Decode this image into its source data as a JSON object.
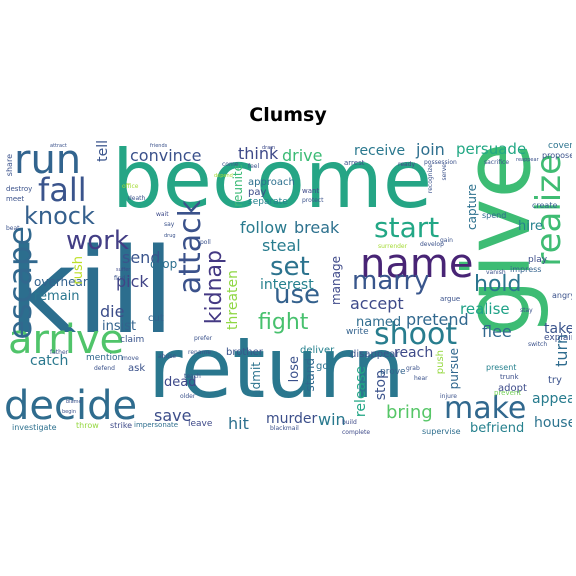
{
  "title": "Clumsy",
  "words": [
    {
      "text": "kill",
      "color": "#2c6e8e"
    },
    {
      "text": "become",
      "color": "#25a585"
    },
    {
      "text": "return",
      "color": "#2a778e"
    },
    {
      "text": "give",
      "color": "#3dbc74"
    },
    {
      "text": "realize",
      "color": "#3fbc73"
    },
    {
      "text": "name",
      "color": "#482475"
    },
    {
      "text": "arrive",
      "color": "#50c46a"
    },
    {
      "text": "decide",
      "color": "#2f6c8e"
    },
    {
      "text": "escape",
      "color": "#31688e"
    },
    {
      "text": "run",
      "color": "#32648e"
    },
    {
      "text": "fall",
      "color": "#3a548c"
    },
    {
      "text": "knock",
      "color": "#35608d"
    },
    {
      "text": "work",
      "color": "#433e85"
    },
    {
      "text": "attack",
      "color": "#3b528b"
    },
    {
      "text": "make",
      "color": "#31688e"
    },
    {
      "text": "shoot",
      "color": "#287d8e"
    },
    {
      "text": "start",
      "color": "#22a785"
    },
    {
      "text": "marry",
      "color": "#39568c"
    },
    {
      "text": "set",
      "color": "#2c738e"
    },
    {
      "text": "use",
      "color": "#34618d"
    },
    {
      "text": "hold",
      "color": "#2b748e"
    },
    {
      "text": "kidnap",
      "color": "#443983"
    },
    {
      "text": "fight",
      "color": "#48c16e"
    },
    {
      "text": "convince",
      "color": "#3b518b"
    },
    {
      "text": "think",
      "color": "#3e4989"
    },
    {
      "text": "drive",
      "color": "#3bbb75"
    },
    {
      "text": "receive",
      "color": "#2a788e"
    },
    {
      "text": "join",
      "color": "#2e6f8e"
    },
    {
      "text": "persuade",
      "color": "#22a884"
    },
    {
      "text": "follow",
      "color": "#297a8e"
    },
    {
      "text": "break",
      "color": "#2d718e"
    },
    {
      "text": "tell",
      "color": "#3a548c"
    },
    {
      "text": "send",
      "color": "#3a548c"
    },
    {
      "text": "steal",
      "color": "#287c8e"
    },
    {
      "text": "pick",
      "color": "#414487"
    },
    {
      "text": "die",
      "color": "#3d4e8a"
    },
    {
      "text": "accept",
      "color": "#3e4a89"
    },
    {
      "text": "pretend",
      "color": "#31688e"
    },
    {
      "text": "flee",
      "color": "#31688e"
    },
    {
      "text": "realise",
      "color": "#1fa287"
    },
    {
      "text": "take",
      "color": "#3a548c"
    },
    {
      "text": "interest",
      "color": "#26818e"
    },
    {
      "text": "named",
      "color": "#2f6c8e"
    },
    {
      "text": "save",
      "color": "#3d4e8a"
    },
    {
      "text": "bring",
      "color": "#56c667"
    },
    {
      "text": "hit",
      "color": "#2d708e"
    },
    {
      "text": "murder",
      "color": "#3c4f8a"
    },
    {
      "text": "win",
      "color": "#29798e"
    },
    {
      "text": "appear",
      "color": "#287c8e"
    },
    {
      "text": "house",
      "color": "#2c738e"
    },
    {
      "text": "befriend",
      "color": "#26818e"
    },
    {
      "text": "stop",
      "color": "#3b528b"
    },
    {
      "text": "reach",
      "color": "#3e4a89"
    },
    {
      "text": "release",
      "color": "#21a685"
    },
    {
      "text": "turn",
      "color": "#2f6c8e"
    },
    {
      "text": "catch",
      "color": "#2a788e"
    },
    {
      "text": "insist",
      "color": "#33638d"
    },
    {
      "text": "remain",
      "color": "#2a768e"
    },
    {
      "text": "overhear",
      "color": "#33628d"
    },
    {
      "text": "hire",
      "color": "#26828e"
    },
    {
      "text": "capture",
      "color": "#2d718e"
    },
    {
      "text": "threaten",
      "color": "#8fd744"
    },
    {
      "text": "rush",
      "color": "#bddf26"
    },
    {
      "text": "drop",
      "color": "#2d708e"
    },
    {
      "text": "manage",
      "color": "#3e4989"
    },
    {
      "text": "pursue",
      "color": "#31678e"
    },
    {
      "text": "lose",
      "color": "#3b518b"
    },
    {
      "text": "stand",
      "color": "#30698e"
    },
    {
      "text": "dead",
      "color": "#3e4989"
    },
    {
      "text": "admit",
      "color": "#2c738e"
    },
    {
      "text": "reunite",
      "color": "#3aba76"
    },
    {
      "text": "approach",
      "color": "#2d708e"
    },
    {
      "text": "separate",
      "color": "#25838e"
    },
    {
      "text": "pay",
      "color": "#3e4c8a"
    },
    {
      "text": "cut",
      "color": "#33628d"
    },
    {
      "text": "claim",
      "color": "#39558c"
    },
    {
      "text": "mention",
      "color": "#31688e"
    },
    {
      "text": "ask",
      "color": "#3b528b"
    },
    {
      "text": "leave",
      "color": "#3e4a89"
    },
    {
      "text": "brother",
      "color": "#3a548c"
    },
    {
      "text": "deliver",
      "color": "#26818e"
    },
    {
      "text": "disappear",
      "color": "#3a548c"
    },
    {
      "text": "write",
      "color": "#33628d"
    },
    {
      "text": "go",
      "color": "#2c728e"
    },
    {
      "text": "push",
      "color": "#95d840"
    },
    {
      "text": "prove",
      "color": "#33638d"
    },
    {
      "text": "explain",
      "color": "#3c4f8a"
    },
    {
      "text": "adopt",
      "color": "#3e4c8a"
    },
    {
      "text": "try",
      "color": "#3b528b"
    },
    {
      "text": "cover",
      "color": "#2c738e"
    },
    {
      "text": "propose",
      "color": "#3b528b"
    },
    {
      "text": "create",
      "color": "#33628d"
    },
    {
      "text": "spend",
      "color": "#30698e"
    },
    {
      "text": "play",
      "color": "#3d4e8a"
    },
    {
      "text": "impress",
      "color": "#33628d"
    },
    {
      "text": "angry",
      "color": "#3b528b"
    },
    {
      "text": "present",
      "color": "#26818e"
    },
    {
      "text": "trunk",
      "color": "#3c4f8a"
    },
    {
      "text": "prevent",
      "color": "#73d056"
    },
    {
      "text": "supervise",
      "color": "#2e6e8e"
    },
    {
      "text": "investigate",
      "color": "#2d708e"
    },
    {
      "text": "throw",
      "color": "#95d840"
    },
    {
      "text": "strike",
      "color": "#3e4a89"
    },
    {
      "text": "impersonate",
      "color": "#2e6e8e"
    },
    {
      "text": "blackmail",
      "color": "#3b518b"
    },
    {
      "text": "complete",
      "color": "#3e4a89"
    },
    {
      "text": "build",
      "color": "#3e4a89"
    },
    {
      "text": "arrest",
      "color": "#3b528b"
    },
    {
      "text": "possession",
      "color": "#3b528b"
    },
    {
      "text": "ready",
      "color": "#3e4a89"
    },
    {
      "text": "sacrifice",
      "color": "#3b528b"
    },
    {
      "text": "reappear",
      "color": "#3b528b"
    },
    {
      "text": "want",
      "color": "#3e4a89"
    },
    {
      "text": "protect",
      "color": "#3b528b"
    },
    {
      "text": "dram",
      "color": "#3e4a89"
    },
    {
      "text": "come",
      "color": "#3b528b"
    },
    {
      "text": "feel",
      "color": "#3b528b"
    },
    {
      "text": "office",
      "color": "#a5db36"
    },
    {
      "text": "death",
      "color": "#3b528b"
    },
    {
      "text": "wait",
      "color": "#3e4a89"
    },
    {
      "text": "say",
      "color": "#3b528b"
    },
    {
      "text": "poll",
      "color": "#3b528b"
    },
    {
      "text": "suffer",
      "color": "#3e4a89"
    },
    {
      "text": "prefer",
      "color": "#3b528b"
    },
    {
      "text": "rename",
      "color": "#3b528b"
    },
    {
      "text": "older",
      "color": "#3b528b"
    },
    {
      "text": "defend",
      "color": "#3b528b"
    },
    {
      "text": "move",
      "color": "#3b528b"
    },
    {
      "text": "teach",
      "color": "#3b528b"
    },
    {
      "text": "father",
      "color": "#3b528b"
    },
    {
      "text": "abuse",
      "color": "#3b528b"
    },
    {
      "text": "blame",
      "color": "#3b528b"
    },
    {
      "text": "begin",
      "color": "#3b528b"
    },
    {
      "text": "find",
      "color": "#3b528b"
    },
    {
      "text": "share",
      "color": "#3b528b"
    },
    {
      "text": "meet",
      "color": "#3b528b"
    },
    {
      "text": "destroy",
      "color": "#3b528b"
    },
    {
      "text": "attract",
      "color": "#3b528b"
    },
    {
      "text": "beat",
      "color": "#3b528b"
    },
    {
      "text": "drug",
      "color": "#3b528b"
    },
    {
      "text": "gain",
      "color": "#3b528b"
    },
    {
      "text": "develop",
      "color": "#3b528b"
    },
    {
      "text": "surrender",
      "color": "#a5db36"
    },
    {
      "text": "vanish",
      "color": "#3b528b"
    },
    {
      "text": "argue",
      "color": "#3b528b"
    },
    {
      "text": "stay",
      "color": "#3b528b"
    },
    {
      "text": "switch",
      "color": "#3b528b"
    },
    {
      "text": "grab",
      "color": "#3b528b"
    },
    {
      "text": "hear",
      "color": "#3b528b"
    },
    {
      "text": "recognize",
      "color": "#3b528b"
    },
    {
      "text": "serve",
      "color": "#3b528b"
    },
    {
      "text": "friends",
      "color": "#3b528b"
    },
    {
      "text": "depend",
      "color": "#a5db36"
    },
    {
      "text": "injure",
      "color": "#3b528b"
    }
  ]
}
